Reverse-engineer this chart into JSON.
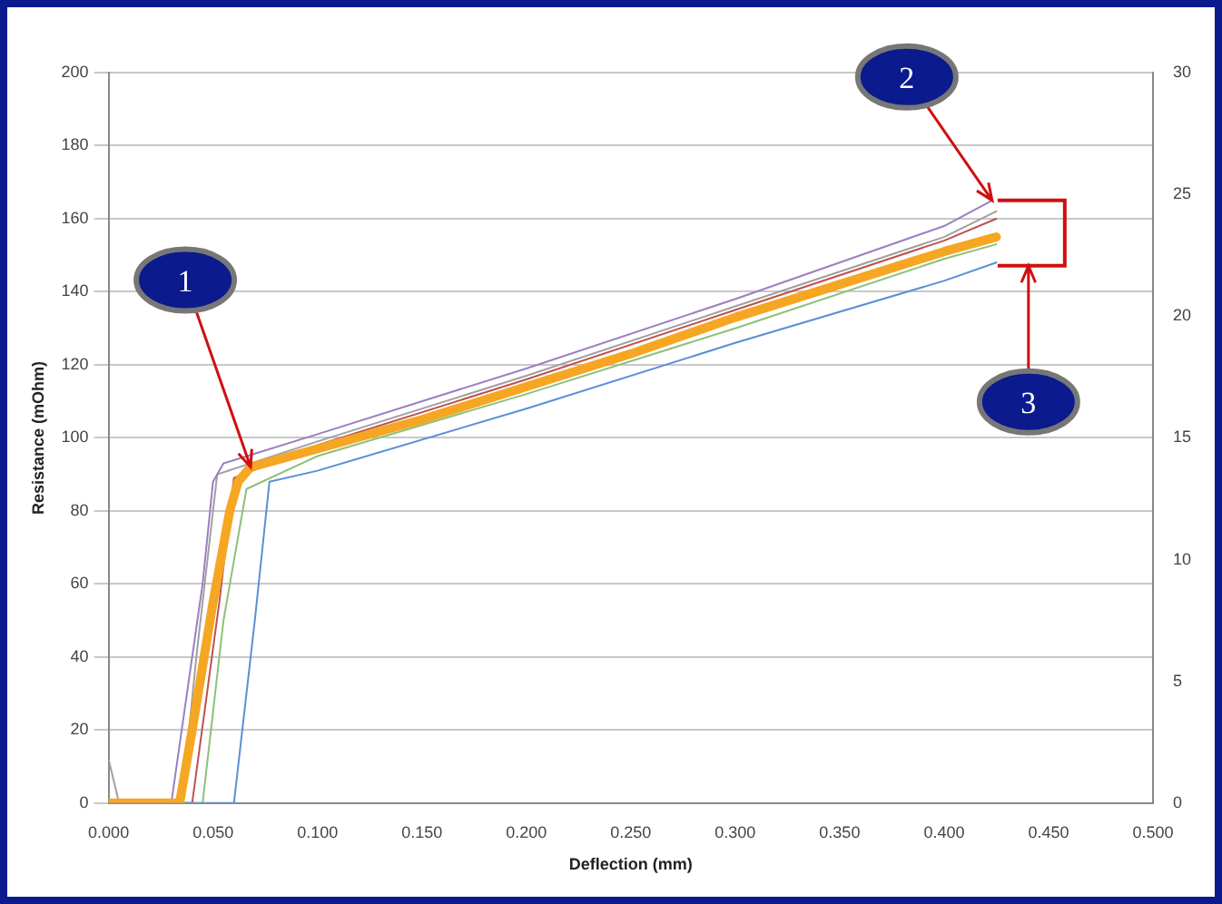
{
  "chart_data": {
    "type": "line",
    "xlabel": "Deflection (mm)",
    "ylabel": "Resistance (mOhm)",
    "xlim": [
      0,
      0.5
    ],
    "xticks": [
      {
        "value": 0,
        "label": "0.000"
      },
      {
        "value": 0.05,
        "label": "0.050"
      },
      {
        "value": 0.1,
        "label": "0.100"
      },
      {
        "value": 0.15,
        "label": "0.150"
      },
      {
        "value": 0.2,
        "label": "0.200"
      },
      {
        "value": 0.25,
        "label": "0.250"
      },
      {
        "value": 0.3,
        "label": "0.300"
      },
      {
        "value": 0.35,
        "label": "0.350"
      },
      {
        "value": 0.4,
        "label": "0.400"
      },
      {
        "value": 0.45,
        "label": "0.450"
      },
      {
        "value": 0.5,
        "label": "0.500"
      }
    ],
    "ylim": [
      0,
      200
    ],
    "yticks": [
      0,
      20,
      40,
      60,
      80,
      100,
      120,
      140,
      160,
      180,
      200
    ],
    "y2lim": [
      0,
      30
    ],
    "y2ticks": [
      0,
      5,
      10,
      15,
      20,
      25,
      30
    ],
    "grid": "y",
    "legend": false,
    "marker": "none",
    "line_style": "solid",
    "series": [
      {
        "color": "#f5a623",
        "x": [
          0,
          0.03,
          0.034,
          0.04,
          0.05,
          0.058,
          0.062,
          0.068,
          0.1,
          0.15,
          0.2,
          0.25,
          0.3,
          0.35,
          0.4,
          0.425
        ],
        "values": [
          0,
          0,
          0,
          20,
          55,
          80,
          88,
          92,
          97,
          105,
          114,
          123,
          133,
          142,
          151,
          155
        ]
      },
      {
        "color": "#9b7fc0",
        "x": [
          0,
          0.03,
          0.045,
          0.05,
          0.055,
          0.1,
          0.2,
          0.3,
          0.4,
          0.423
        ],
        "values": [
          0,
          0,
          60,
          88,
          93,
          101,
          119,
          138,
          158,
          165
        ]
      },
      {
        "color": "#5b8fd6",
        "x": [
          0,
          0.06,
          0.07,
          0.077,
          0.1,
          0.2,
          0.3,
          0.4,
          0.425
        ],
        "values": [
          0,
          0,
          50,
          88,
          91,
          108,
          126,
          143,
          148
        ]
      },
      {
        "color": "#8dc07a",
        "x": [
          0,
          0.045,
          0.055,
          0.066,
          0.1,
          0.2,
          0.3,
          0.4,
          0.425
        ],
        "values": [
          0,
          0,
          50,
          86,
          95,
          112,
          130,
          149,
          153
        ]
      },
      {
        "color": "#c0504d",
        "x": [
          0,
          0.04,
          0.053,
          0.06,
          0.1,
          0.2,
          0.3,
          0.4,
          0.425
        ],
        "values": [
          0,
          0,
          55,
          89,
          98,
          116,
          135,
          154,
          160
        ]
      },
      {
        "color": "#a0a0a0",
        "x": [
          0,
          0.005,
          0.035,
          0.042,
          0.052,
          0.1,
          0.2,
          0.3,
          0.4,
          0.425
        ],
        "values": [
          12,
          0,
          0,
          40,
          90,
          99,
          117,
          136,
          155,
          162
        ]
      }
    ],
    "annotations": [
      {
        "text": "1",
        "x": 0.068,
        "y": 92
      },
      {
        "text": "2",
        "x": 0.423,
        "y": 165
      },
      "3"
    ]
  }
}
